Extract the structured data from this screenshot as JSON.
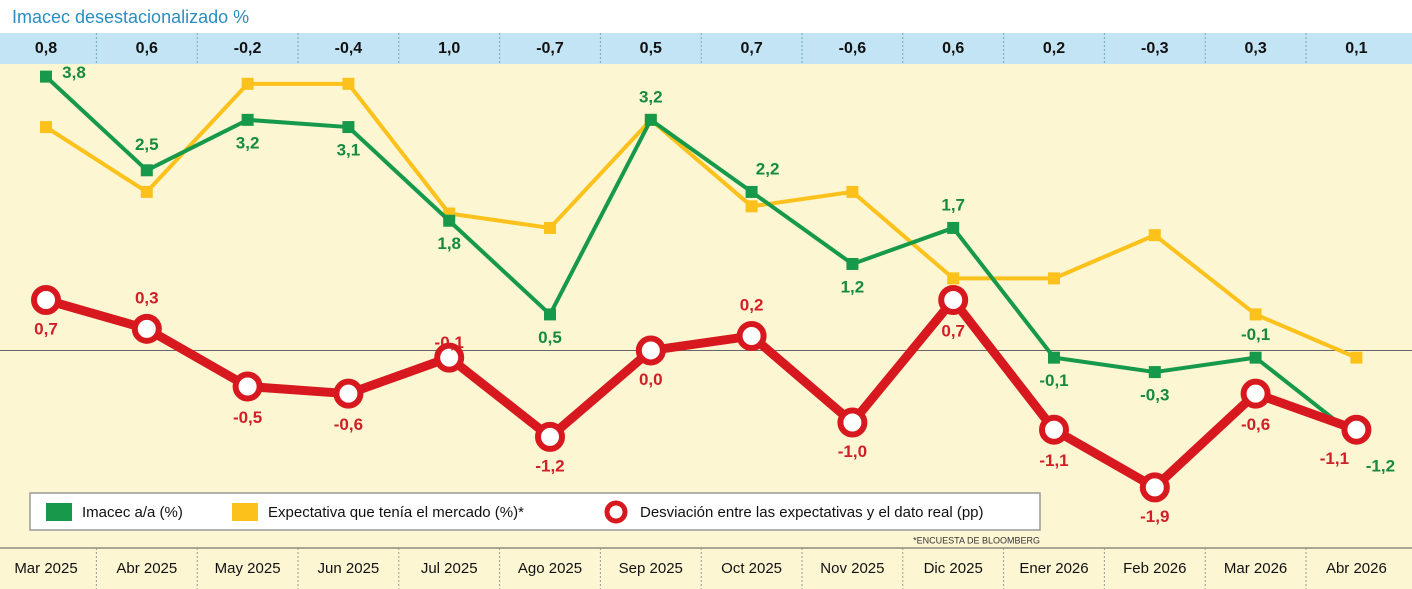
{
  "chart_data": {
    "type": "line",
    "title": "Imacec desestacionalizado %",
    "header_values": [
      0.8,
      0.6,
      -0.2,
      -0.4,
      1.0,
      -0.7,
      0.5,
      0.7,
      -0.6,
      0.6,
      0.2,
      -0.3,
      0.3,
      0.1
    ],
    "header_value_labels": [
      "0,8",
      "0,6",
      "-0,2",
      "-0,4",
      "1,0",
      "-0,7",
      "0,5",
      "0,7",
      "-0,6",
      "0,6",
      "0,2",
      "-0,3",
      "0,3",
      "0,1"
    ],
    "categories": [
      "Mar 2025",
      "Abr 2025",
      "May 2025",
      "Jun 2025",
      "Jul 2025",
      "Ago 2025",
      "Sep 2025",
      "Oct 2025",
      "Nov 2025",
      "Dic 2025",
      "Ener 2026",
      "Feb 2026",
      "Mar 2026",
      "Abr 2026"
    ],
    "ylim": [
      -2.7,
      4.1
    ],
    "series": [
      {
        "name": "Imacec a/a (%)",
        "color": "#16994a",
        "marker": "square",
        "values": [
          3.8,
          2.5,
          3.2,
          3.1,
          1.8,
          0.5,
          3.2,
          2.2,
          1.2,
          1.7,
          -0.1,
          -0.3,
          -0.1,
          -1.2
        ],
        "value_labels": [
          "3,8",
          "2,5",
          "3,2",
          "3,1",
          "1,8",
          "0,5",
          "3,2",
          "2,2",
          "1,2",
          "1,7",
          "-0,1",
          "-0,3",
          "-0,1",
          "-1,2"
        ]
      },
      {
        "name": "Expectativa que tenía el mercado (%)*",
        "color": "#fcc21b",
        "marker": "square",
        "values": [
          3.1,
          2.2,
          3.7,
          3.7,
          1.9,
          1.7,
          3.2,
          2.0,
          2.2,
          1.0,
          1.0,
          1.6,
          0.5,
          -0.1
        ]
      },
      {
        "name": "Desviación entre las expectativas y el dato real (pp)",
        "color": "#d7191f",
        "marker": "circle",
        "values": [
          0.7,
          0.3,
          -0.5,
          -0.6,
          -0.1,
          -1.2,
          0.0,
          0.2,
          -1.0,
          0.7,
          -1.1,
          -1.9,
          -0.6,
          -1.1
        ],
        "value_labels": [
          "0,7",
          "0,3",
          "-0,5",
          "-0,6",
          "-0,1",
          "-1,2",
          "0,0",
          "0,2",
          "-1,0",
          "0,7",
          "-1,1",
          "-1,9",
          "-0,6",
          "-1,1"
        ]
      }
    ],
    "legend_position": "bottom-left",
    "footnote": "*ENCUESTA DE BLOOMBERG"
  }
}
